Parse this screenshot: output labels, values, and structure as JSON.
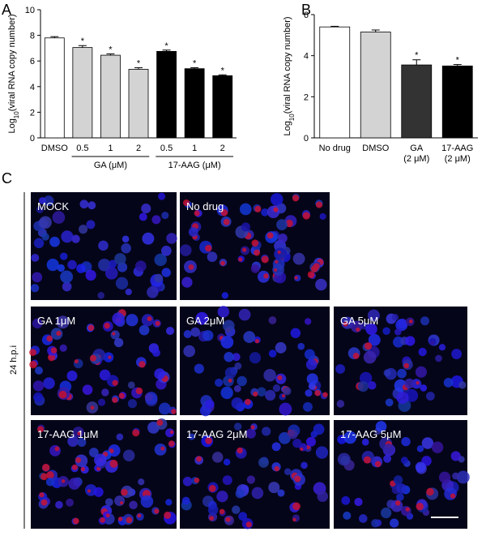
{
  "chart_data": [
    {
      "type": "bar",
      "panel": "A",
      "ylabel": {
        "base": "Log",
        "sub": "10",
        "text": "(viral RNA copy number)"
      },
      "categories": [
        "DMSO",
        "0.5",
        "1",
        "2",
        "0.5",
        "1",
        "2"
      ],
      "values": [
        7.8,
        7.05,
        6.45,
        5.35,
        6.75,
        5.4,
        4.85
      ],
      "errors": [
        0.1,
        0.15,
        0.1,
        0.12,
        0.1,
        0.08,
        0.07
      ],
      "colors": [
        "#ffffff",
        "#d3d3d3",
        "#d3d3d3",
        "#d3d3d3",
        "#000000",
        "#000000",
        "#000000"
      ],
      "annotations": [
        null,
        "*",
        "*",
        "*",
        "*",
        "*",
        "*"
      ],
      "group_labels": [
        "GA (μM)",
        "17-AAG (μM)"
      ],
      "ylim": [
        0,
        10
      ],
      "yticks": [
        0,
        2,
        4,
        6,
        8,
        10
      ]
    },
    {
      "type": "bar",
      "panel": "B",
      "ylabel": {
        "base": "Log",
        "sub": "10",
        "text": "(viral RNA copy number)"
      },
      "categories": [
        [
          "No drug"
        ],
        [
          "DMSO"
        ],
        [
          "GA",
          "(2 μM)"
        ],
        [
          "17-AAG",
          "(2 μM)"
        ]
      ],
      "values": [
        5.4,
        5.15,
        3.55,
        3.5
      ],
      "errors": [
        0.03,
        0.1,
        0.25,
        0.07
      ],
      "colors": [
        "#ffffff",
        "#d3d3d3",
        "#333333",
        "#000000"
      ],
      "annotations": [
        null,
        null,
        "*",
        "*"
      ],
      "ylim": [
        0,
        6
      ],
      "yticks": [
        0,
        2,
        4,
        6
      ]
    }
  ],
  "panel_c": {
    "label": "C",
    "side_label": "24 h.p.i",
    "images": [
      {
        "label": "MOCK"
      },
      {
        "label": "No drug"
      },
      {
        "label": "GA 1μM"
      },
      {
        "label": "GA 2μM"
      },
      {
        "label": "GA 5μM"
      },
      {
        "label": "17-AAG 1μM"
      },
      {
        "label": "17-AAG 2μM"
      },
      {
        "label": "17-AAG 5μM"
      }
    ]
  }
}
